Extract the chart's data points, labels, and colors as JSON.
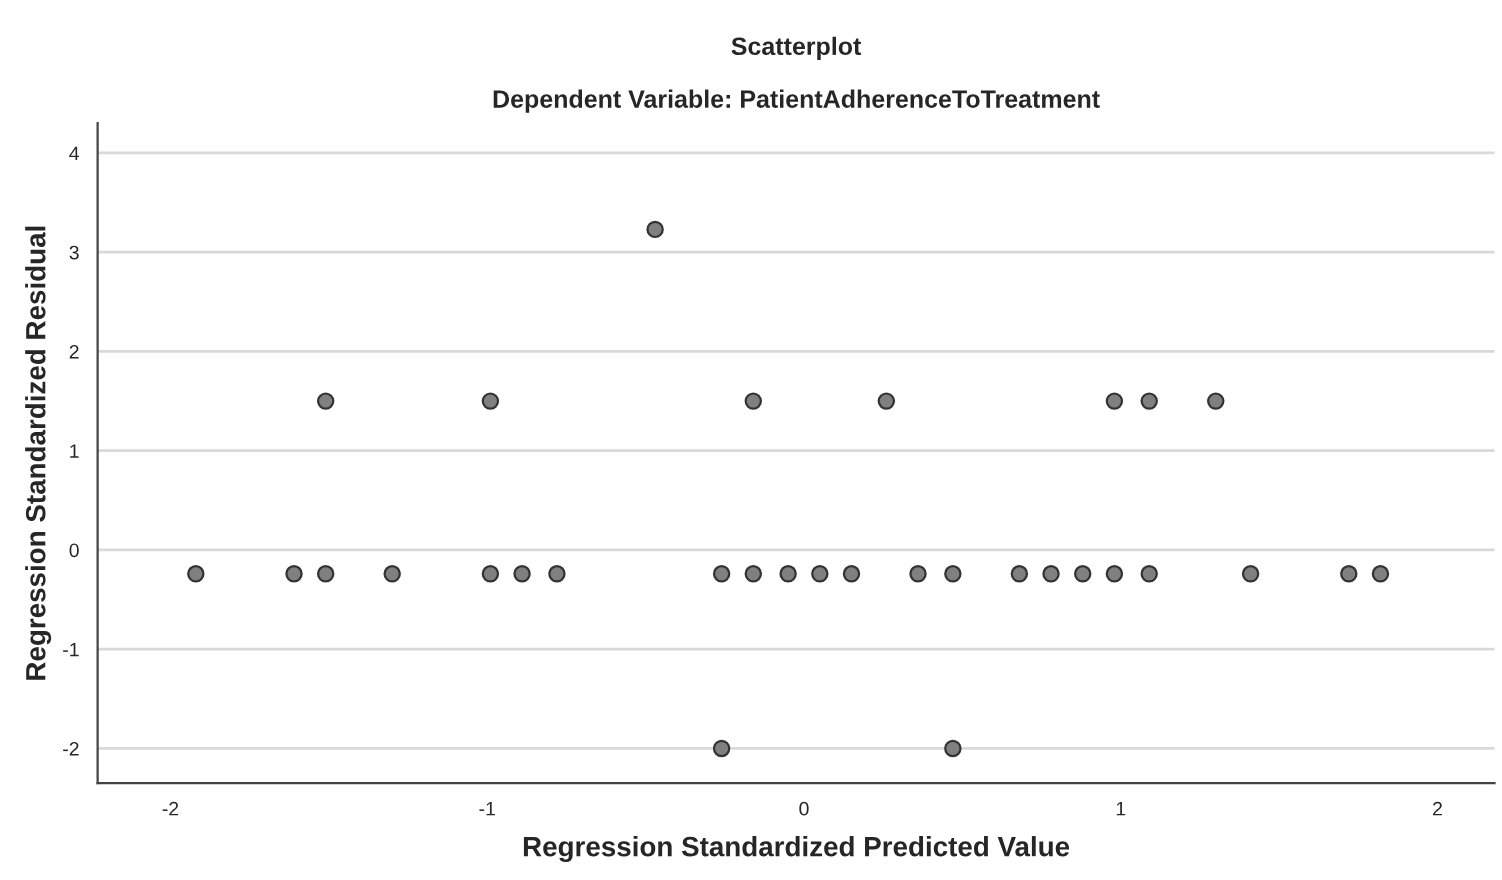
{
  "chart_data": {
    "type": "scatter",
    "title": "Scatterplot",
    "subtitle": "Dependent Variable: PatientAdherenceToTreatment",
    "xlabel": "Regression Standardized Predicted Value",
    "ylabel": "Regression Standardized Residual",
    "series": [
      {
        "color": "#808080",
        "x": [
          -1.92,
          -1.61,
          -1.51,
          -1.3,
          -0.99,
          -0.89,
          -0.78,
          -0.26,
          -0.16,
          -0.05,
          0.05,
          0.15,
          0.36,
          0.47,
          0.68,
          0.78,
          0.88,
          0.98,
          1.09,
          1.41,
          1.72,
          1.82,
          -1.51,
          -0.99,
          -0.16,
          0.26,
          0.98,
          1.09,
          1.3,
          -0.47,
          -0.26,
          0.47
        ],
        "values": [
          -0.24,
          -0.24,
          -0.24,
          -0.24,
          -0.24,
          -0.24,
          -0.24,
          -0.24,
          -0.24,
          -0.24,
          -0.24,
          -0.24,
          -0.24,
          -0.24,
          -0.24,
          -0.24,
          -0.24,
          -0.24,
          -0.24,
          -0.24,
          -0.24,
          -0.24,
          1.5,
          1.5,
          1.5,
          1.5,
          1.5,
          1.5,
          1.5,
          3.23,
          -2.0,
          -2.0
        ]
      }
    ],
    "xlim": [
      -2.23,
      2.18
    ],
    "ylim": [
      -2.35,
      4.3
    ],
    "xticks": [
      -2,
      -1,
      0,
      1,
      2
    ],
    "yticks": [
      -2,
      -1,
      0,
      1,
      2,
      3,
      4
    ],
    "grid": "y",
    "marker": "circle",
    "legend": false
  }
}
